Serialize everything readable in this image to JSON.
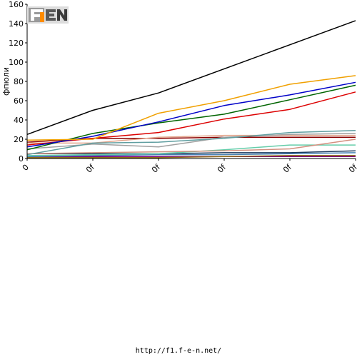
{
  "chart_data": {
    "type": "line",
    "ylabel": "фпюли",
    "ylim": [
      0,
      160
    ],
    "y_ticks": [
      0,
      20,
      40,
      60,
      80,
      100,
      120,
      140,
      160
    ],
    "x_tick_labels": [
      "0",
      "0f",
      "0f",
      "0f",
      "0f",
      "0f"
    ],
    "x": [
      0,
      1,
      2,
      3,
      4,
      5
    ],
    "grid": false,
    "series": [
      {
        "color": "#000000",
        "values": [
          25,
          50,
          68,
          93,
          118,
          143
        ]
      },
      {
        "color": "#f0a000",
        "values": [
          19,
          20,
          47,
          60,
          77,
          86
        ]
      },
      {
        "color": "#0000c8",
        "values": [
          12,
          23,
          38,
          55,
          66,
          79
        ]
      },
      {
        "color": "#006400",
        "values": [
          9,
          26,
          37,
          46,
          61,
          76
        ]
      },
      {
        "color": "#dc0000",
        "values": [
          14,
          21,
          27,
          41,
          51,
          69
        ]
      },
      {
        "color": "#5f9ea0",
        "values": [
          4,
          16,
          17,
          21,
          27,
          29
        ]
      },
      {
        "color": "#a0a0a0",
        "values": [
          10,
          15,
          12,
          22,
          25,
          26
        ]
      },
      {
        "color": "#e3a58c",
        "values": [
          16,
          16,
          22,
          24,
          24,
          24
        ]
      },
      {
        "color": "#8b0000",
        "values": [
          17,
          21,
          21,
          22,
          22,
          22
        ]
      },
      {
        "color": "#d39080",
        "values": [
          5,
          6,
          7,
          8,
          10,
          20
        ]
      },
      {
        "color": "#66cdaa",
        "values": [
          3,
          4,
          5,
          9,
          14,
          14
        ]
      },
      {
        "color": "#1a3a5e",
        "values": [
          5,
          5,
          5,
          6,
          6,
          8
        ]
      },
      {
        "color": "#4682b4",
        "values": [
          2,
          3,
          4,
          4,
          5,
          6
        ]
      },
      {
        "color": "#8b6914",
        "values": [
          1,
          1,
          1,
          2,
          3,
          3
        ]
      },
      {
        "color": "#800080",
        "values": [
          2,
          2,
          2,
          2,
          2,
          2
        ]
      }
    ]
  },
  "footer": {
    "url": "http://f1.f-e-n.net/"
  },
  "logo": {
    "text": "F1EN"
  }
}
